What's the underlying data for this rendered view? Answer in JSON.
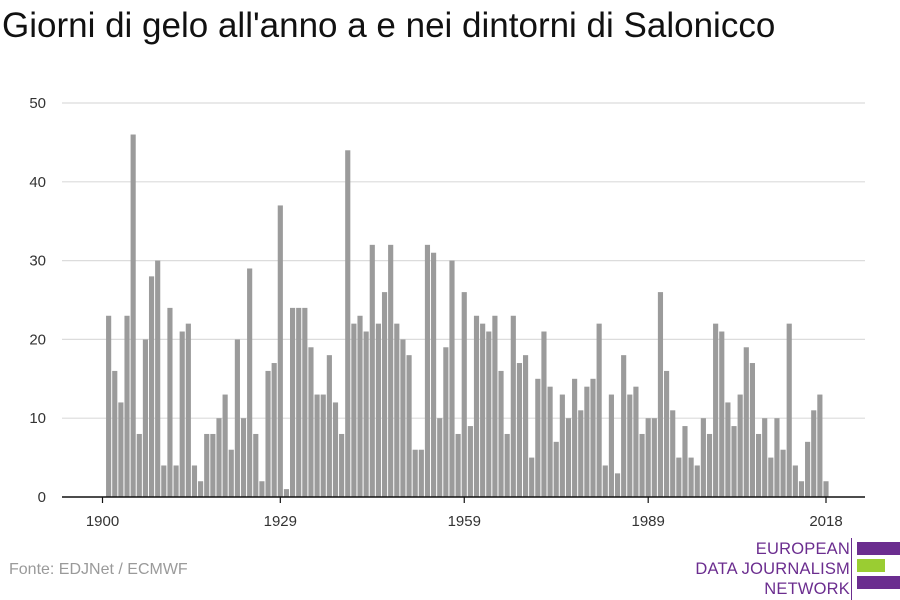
{
  "title": "Giorni di gelo all'anno a e nei dintorni di Salonicco",
  "source": "Fonte: EDJNet / ECMWF",
  "logo": {
    "lines": [
      "EUROPEAN",
      "DATA JOURNALISM",
      "NETWORK"
    ],
    "colors": {
      "purple": "#6b2d8f",
      "green": "#9acd32"
    }
  },
  "chart_data": {
    "type": "bar",
    "title": "Giorni di gelo all'anno a e nei dintorni di Salonicco",
    "xlabel": "",
    "ylabel": "",
    "x_start": 1901,
    "x_end": 2018,
    "xlim": [
      1900,
      2020
    ],
    "ylim": [
      0,
      50
    ],
    "xticks": [
      1900,
      1929,
      1959,
      1989,
      2018
    ],
    "yticks": [
      0,
      10,
      20,
      30,
      40,
      50
    ],
    "grid": true,
    "bar_color": "#9b9b9b",
    "values": [
      23,
      16,
      12,
      23,
      46,
      8,
      20,
      28,
      30,
      4,
      24,
      4,
      21,
      22,
      4,
      2,
      8,
      8,
      10,
      13,
      6,
      20,
      10,
      29,
      8,
      2,
      16,
      17,
      37,
      1,
      24,
      24,
      24,
      19,
      13,
      13,
      18,
      12,
      8,
      44,
      22,
      23,
      21,
      32,
      22,
      26,
      32,
      22,
      20,
      18,
      6,
      6,
      32,
      31,
      10,
      19,
      30,
      8,
      26,
      9,
      23,
      22,
      21,
      23,
      16,
      8,
      23,
      17,
      18,
      5,
      15,
      21,
      14,
      7,
      13,
      10,
      15,
      11,
      14,
      15,
      22,
      4,
      13,
      3,
      18,
      13,
      14,
      8,
      10,
      10,
      26,
      16,
      11,
      5,
      9,
      5,
      4,
      10,
      8,
      22,
      21,
      12,
      9,
      13,
      19,
      17,
      8,
      10,
      5,
      10,
      6,
      22,
      4,
      2,
      7,
      11,
      13,
      2
    ]
  }
}
